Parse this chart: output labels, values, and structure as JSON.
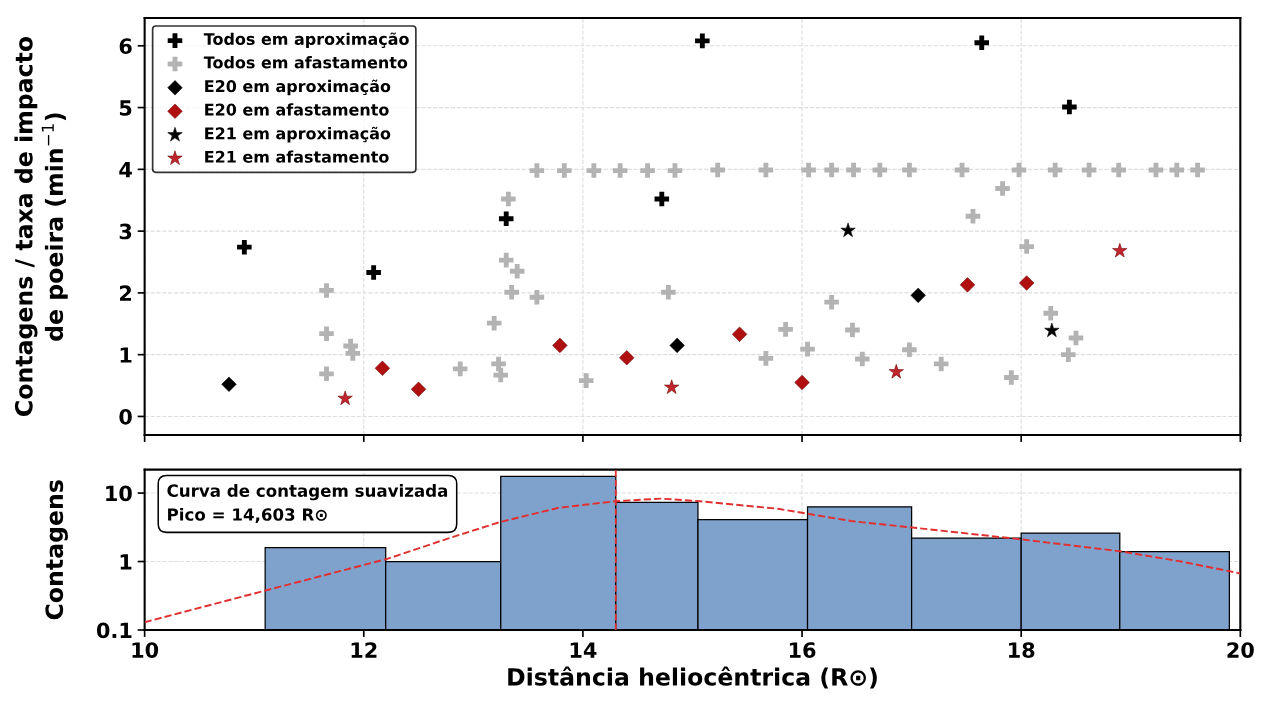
{
  "chart_data": [
    {
      "type": "scatter",
      "ylabel": "Contagens / taxa de impacto\nde poeira (min$^{−1}$)",
      "xlim": [
        10,
        20
      ],
      "xticks": [
        10,
        12,
        14,
        16,
        18,
        20
      ],
      "ylim": [
        -0.3,
        6.45
      ],
      "yticks": [
        0,
        1,
        2,
        3,
        4,
        5,
        6
      ],
      "tick_labels": "y",
      "grid": true,
      "legend": "top left",
      "series": [
        {
          "name": "Todos em aproximação",
          "color": "#000000",
          "marker": "cross",
          "x": [
            10.91,
            12.09,
            13.3,
            14.72,
            15.09,
            17.64,
            18.44
          ],
          "values": [
            2.74,
            2.33,
            3.2,
            3.52,
            6.08,
            6.05,
            5.01
          ]
        },
        {
          "name": "Todos em afastamento",
          "color": "#b3b3b3",
          "marker": "cross",
          "x": [
            11.66,
            11.66,
            11.66,
            11.88,
            11.9,
            12.88,
            13.19,
            13.23,
            13.25,
            13.32,
            13.3,
            13.4,
            13.35,
            13.58,
            13.58,
            13.83,
            14.1,
            14.34,
            14.59,
            14.84,
            14.03,
            14.78,
            15.23,
            15.67,
            16.06,
            16.27,
            16.47,
            16.71,
            16.98,
            17.46,
            17.98,
            18.31,
            18.62,
            18.89,
            19.23,
            19.42,
            19.61,
            17.83,
            17.56,
            18.05,
            16.27,
            15.85,
            16.46,
            15.67,
            16.05,
            16.55,
            16.98,
            17.27,
            17.91,
            18.27,
            18.5,
            18.43
          ],
          "values": [
            2.04,
            1.34,
            0.69,
            1.14,
            1.02,
            0.77,
            1.51,
            0.85,
            0.67,
            3.52,
            2.53,
            2.35,
            2.01,
            1.93,
            3.98,
            3.98,
            3.98,
            3.98,
            3.98,
            3.98,
            0.58,
            2.01,
            3.99,
            3.99,
            3.99,
            3.99,
            3.99,
            3.99,
            3.99,
            3.99,
            3.99,
            3.99,
            3.99,
            3.99,
            3.99,
            3.99,
            3.99,
            3.69,
            3.24,
            2.75,
            1.85,
            1.41,
            1.4,
            0.94,
            1.09,
            0.93,
            1.08,
            0.85,
            0.63,
            1.67,
            1.27,
            1.0
          ]
        },
        {
          "name": "E20 em aproximação",
          "color": "#000000",
          "marker": "diamond",
          "x": [
            10.77,
            14.86,
            17.06
          ],
          "values": [
            0.52,
            1.15,
            1.96
          ]
        },
        {
          "name": "E20 em afastamento",
          "color": "#b01010",
          "marker": "diamond",
          "x": [
            12.17,
            12.5,
            13.79,
            14.4,
            15.43,
            16.0,
            17.51,
            18.05
          ],
          "values": [
            0.78,
            0.44,
            1.15,
            0.95,
            1.33,
            0.55,
            2.13,
            2.16
          ]
        },
        {
          "name": "E21 em aproximação",
          "color": "#000000",
          "marker": "star",
          "x": [
            16.42,
            18.28
          ],
          "values": [
            3.01,
            1.39
          ]
        },
        {
          "name": "E21 em afastamento",
          "color": "#c0262c",
          "marker": "star",
          "x": [
            11.83,
            14.81,
            16.86,
            18.9
          ],
          "values": [
            0.29,
            0.47,
            0.72,
            2.68
          ]
        }
      ]
    },
    {
      "type": "histogram",
      "xlabel": "Distância heliocêntrica (R⊙)",
      "ylabel": "Contagens",
      "xlim": [
        10,
        20
      ],
      "xticks": [
        10,
        12,
        14,
        16,
        18,
        20
      ],
      "log": true,
      "ylim": [
        0.1,
        22
      ],
      "yticks": [
        0.1,
        1,
        10
      ],
      "grid": true,
      "bins": [
        10.0,
        11.1,
        12.2,
        13.25,
        14.3,
        15.05,
        16.05,
        17.0,
        18.0,
        18.9,
        19.9
      ],
      "values": [
        0.1,
        1.6,
        1.0,
        17.5,
        7.3,
        4.1,
        6.3,
        2.2,
        2.6,
        1.4
      ],
      "color": "#7fa2cc",
      "series": [
        {
          "type": "line",
          "color": "#e03030",
          "line_style": "dashed",
          "x": [
            10.0,
            11.11,
            12.22,
            12.78,
            13.25,
            13.78,
            14.3,
            14.71,
            15.07,
            15.78,
            16.45,
            17.12,
            18.01,
            18.92,
            19.46,
            20.0
          ],
          "values": [
            0.13,
            0.38,
            1.1,
            2.2,
            3.8,
            6.1,
            7.6,
            8.3,
            7.6,
            5.9,
            3.9,
            3.0,
            2.1,
            1.4,
            1.0,
            0.67
          ]
        }
      ],
      "ref_lines": [
        {
          "axis": "x",
          "value": 14.3,
          "color": "#e03030",
          "line_style": "dashed"
        }
      ],
      "annotations": [
        "Curva de contagem suavizada\nPico = 14,603 R⊙"
      ]
    }
  ]
}
